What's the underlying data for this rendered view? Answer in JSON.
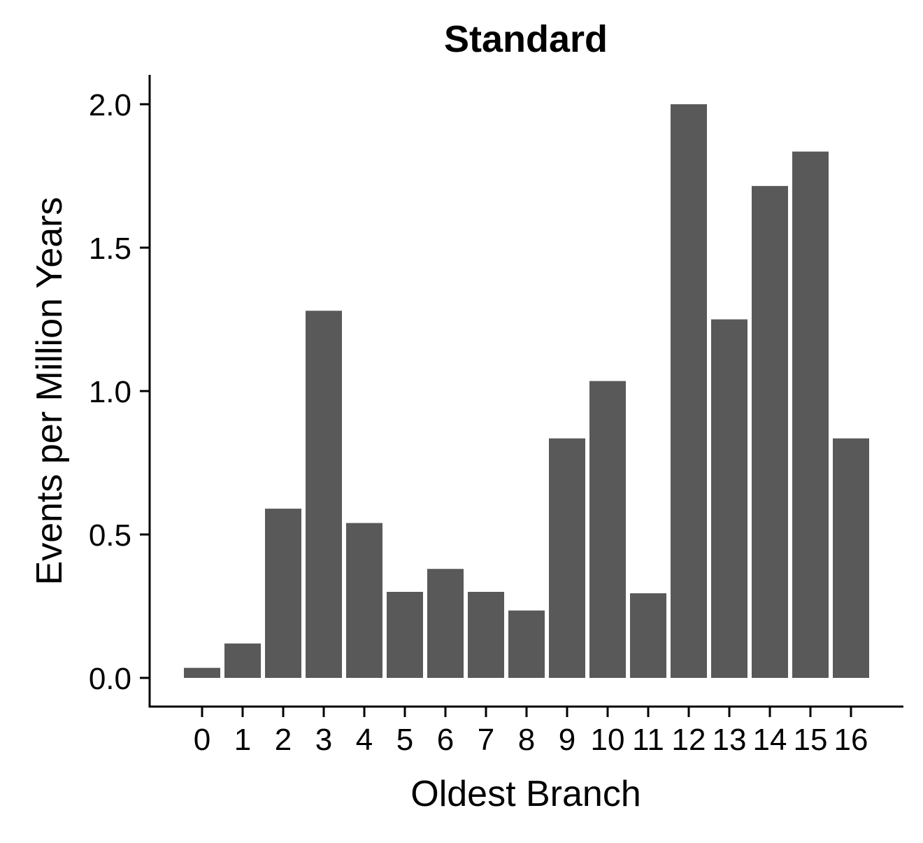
{
  "chart_data": {
    "type": "bar",
    "title": "Standard",
    "xlabel": "Oldest Branch",
    "ylabel": "Events per Million Years",
    "categories": [
      "0",
      "1",
      "2",
      "3",
      "4",
      "5",
      "6",
      "7",
      "8",
      "9",
      "10",
      "11",
      "12",
      "13",
      "14",
      "15",
      "16"
    ],
    "values": [
      0.035,
      0.12,
      0.59,
      1.28,
      0.54,
      0.3,
      0.38,
      0.3,
      0.235,
      0.835,
      1.035,
      0.295,
      2.0,
      1.25,
      1.715,
      1.835,
      0.835
    ],
    "yticks": [
      "0.0",
      "0.5",
      "1.0",
      "1.5",
      "2.0"
    ],
    "ylim": [
      -0.1,
      2.1
    ],
    "grid": false,
    "legend": "none",
    "bar_color": "#595959",
    "axis_color": "#000000"
  }
}
